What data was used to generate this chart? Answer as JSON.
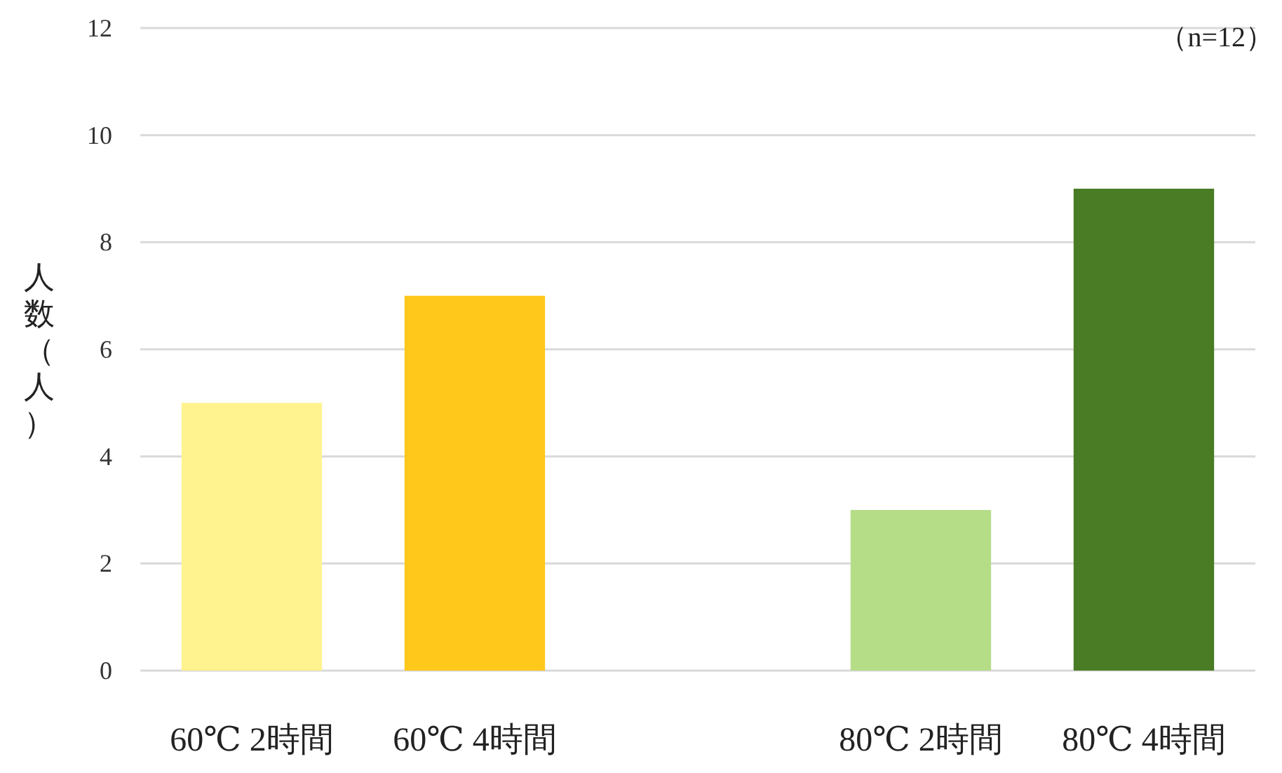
{
  "chart_data": {
    "type": "bar",
    "ylabel": "人数（人）",
    "categories": [
      "60℃ 2時間",
      "60℃ 4時間",
      null,
      "80℃ 2時間",
      "80℃ 4時間"
    ],
    "values": [
      5,
      7,
      null,
      3,
      9
    ],
    "colors": [
      "#fff390",
      "#ffc81a",
      null,
      "#b5dd88",
      "#4a7c26"
    ],
    "ylim": [
      0,
      12
    ],
    "yticks": [
      0,
      2,
      4,
      6,
      8,
      10,
      12
    ],
    "grid": "y",
    "annotations": [
      "（n=12）"
    ]
  }
}
